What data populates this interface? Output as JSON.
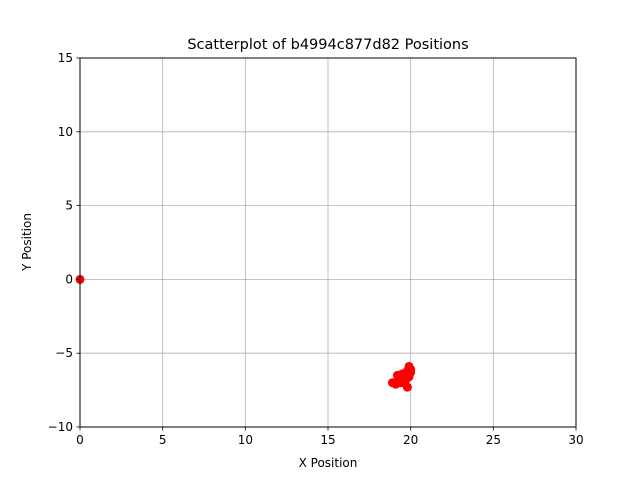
{
  "chart_data": {
    "type": "scatter",
    "title": "Scatterplot of b4994c877d82 Positions",
    "xlabel": "X Position",
    "ylabel": "Y Position",
    "xlim": [
      0,
      30
    ],
    "ylim": [
      -10,
      15
    ],
    "xticks": [
      0,
      5,
      10,
      15,
      20,
      25,
      30
    ],
    "yticks": [
      -10,
      -5,
      0,
      5,
      10,
      15
    ],
    "ytick_labels": [
      "−10",
      "−5",
      "0",
      "5",
      "10",
      "15"
    ],
    "xtick_labels": [
      "0",
      "5",
      "10",
      "15",
      "20",
      "25",
      "30"
    ],
    "grid": true,
    "marker_color": "#ff0000",
    "series": [
      {
        "x": [
          0.0,
          18.9,
          19.1,
          19.2,
          19.3,
          19.4,
          19.5,
          19.6,
          19.7,
          19.8,
          19.9,
          20.0,
          19.2,
          19.4,
          19.6,
          19.8,
          20.0,
          19.3,
          19.5,
          19.7,
          19.9,
          19.0,
          19.8
        ],
        "y": [
          0.0,
          -7.0,
          -7.1,
          -6.9,
          -6.6,
          -6.5,
          -6.7,
          -7.0,
          -6.8,
          -6.4,
          -5.9,
          -6.3,
          -6.5,
          -7.0,
          -6.6,
          -7.3,
          -6.1,
          -6.9,
          -6.4,
          -6.8,
          -6.6,
          -7.0,
          -6.2
        ]
      }
    ]
  }
}
